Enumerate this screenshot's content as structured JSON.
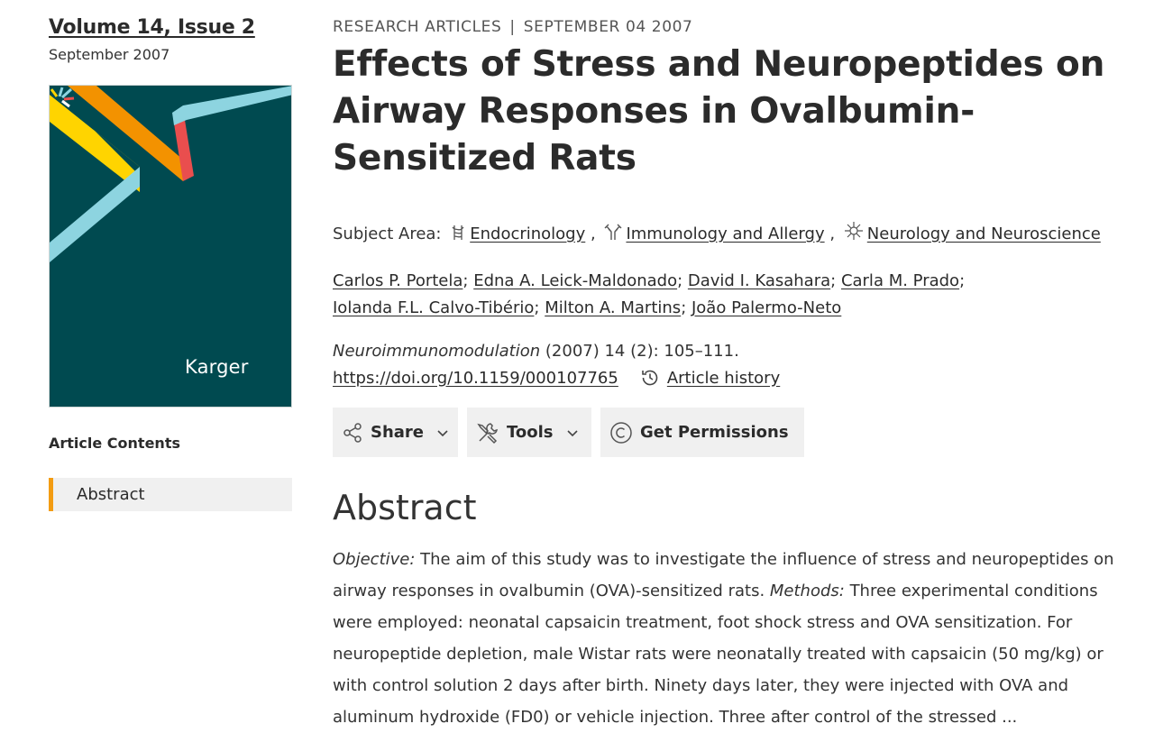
{
  "issue": {
    "volume_label": "Volume 14, Issue 2",
    "date": "September 2007",
    "publisher_logo": "Karger"
  },
  "sidebar": {
    "heading": "Article Contents",
    "items": [
      {
        "label": "Abstract",
        "active": true
      }
    ],
    "accent_color": "#f39c12"
  },
  "article": {
    "section": "RESEARCH ARTICLES",
    "separator": "|",
    "pub_date": "SEPTEMBER 04 2007",
    "title": "Effects of Stress and Neuropeptides on Airway Responses in Ovalbumin-Sensitized Rats",
    "subject_label": "Subject Area:",
    "subjects": [
      {
        "label": "Endocrinology",
        "icon": "endocrinology-icon"
      },
      {
        "label": "Immunology and Allergy",
        "icon": "immunology-icon"
      },
      {
        "label": "Neurology and Neuroscience",
        "icon": "neurology-icon"
      }
    ],
    "authors": [
      "Carlos P. Portela",
      "Edna A. Leick-Maldonado",
      "David I. Kasahara",
      "Carla M. Prado",
      "Iolanda F.L. Calvo-Tibério",
      "Milton A. Martins",
      "João Palermo-Neto"
    ],
    "journal": "Neuroimmunomodulation",
    "citation_rest": "(2007) 14 (2): 105–111.",
    "doi": "https://doi.org/10.1159/000107765",
    "history_label": "Article history"
  },
  "actions": {
    "share": "Share",
    "tools": "Tools",
    "permissions": "Get Permissions"
  },
  "abstract": {
    "heading": "Abstract",
    "objective_label": "Objective:",
    "objective_text": " The aim of this study was to investigate the influence of stress and neuropeptides on airway responses in ovalbumin (OVA)-sensitized rats. ",
    "methods_label": "Methods:",
    "methods_text": " Three experimental conditions were employed: neonatal capsaicin treatment, foot shock stress and OVA sensitization. For neuropeptide depletion, male Wistar rats were neonatally treated with capsaicin (50 mg/kg) or with control solution 2 days after birth. Ninety days later, they were injected with OVA and aluminum hydroxide (FD0) or vehicle injection. Three after control of the stressed ..."
  }
}
